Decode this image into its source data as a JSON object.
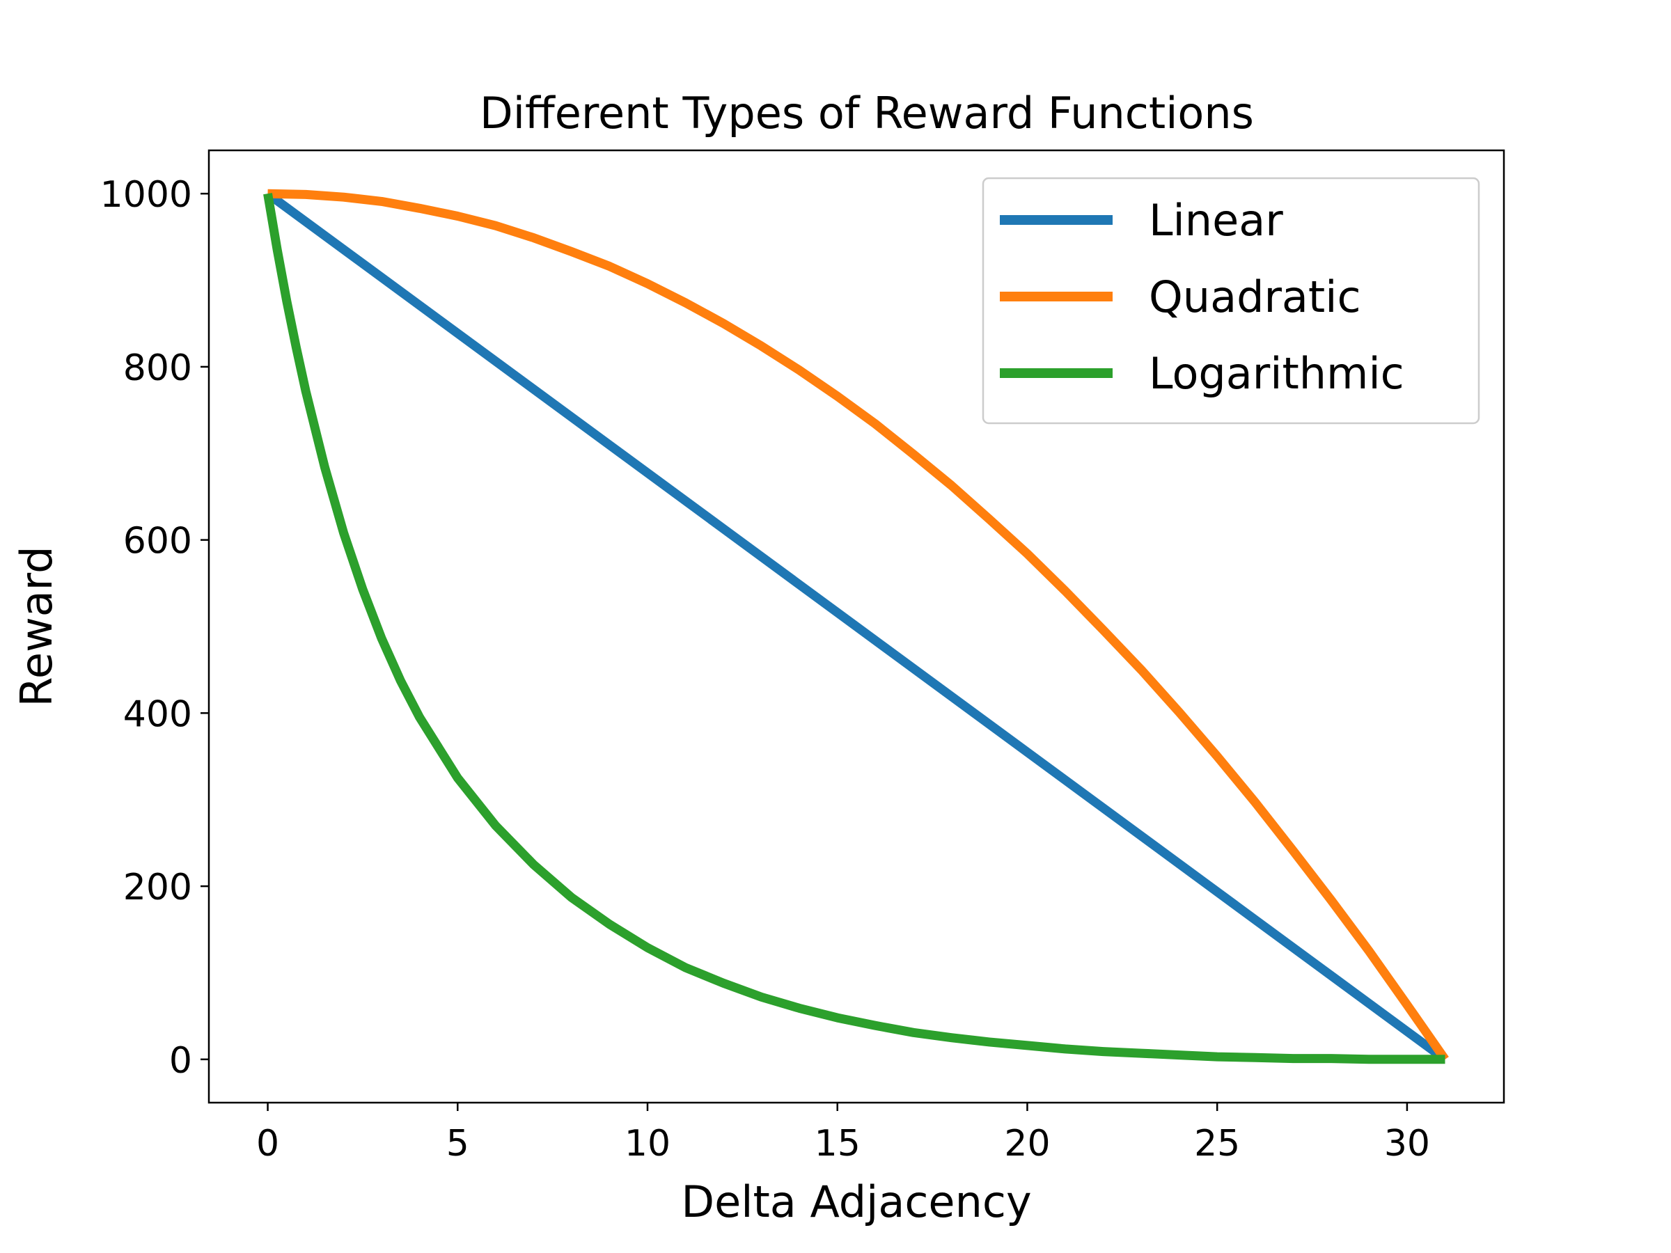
{
  "chart_data": {
    "type": "line",
    "title": "Different Types of Reward Functions",
    "xlabel": "Delta Adjacency",
    "ylabel": "Reward",
    "xlim": [
      -1.55,
      32.55
    ],
    "ylim": [
      -50,
      1050
    ],
    "xticks": [
      0,
      5,
      10,
      15,
      20,
      25,
      30
    ],
    "yticks": [
      0,
      200,
      400,
      600,
      800,
      1000
    ],
    "xtick_labels": [
      "0",
      "5",
      "10",
      "15",
      "20",
      "25",
      "30"
    ],
    "ytick_labels": [
      "0",
      "200",
      "400",
      "600",
      "800",
      "1000"
    ],
    "grid": false,
    "legend_position": "top-right",
    "series": [
      {
        "name": "Linear",
        "color": "#1f77b4",
        "x": [
          0,
          31
        ],
        "y": [
          1000,
          0
        ]
      },
      {
        "name": "Quadratic",
        "color": "#ff7f0e",
        "x": [
          0,
          1,
          2,
          3,
          4,
          5,
          6,
          7,
          8,
          9,
          10,
          11,
          12,
          13,
          14,
          15,
          16,
          17,
          18,
          19,
          20,
          21,
          22,
          23,
          24,
          25,
          26,
          27,
          28,
          29,
          30,
          31
        ],
        "y": [
          1000,
          999,
          996,
          991,
          983,
          974,
          963,
          949,
          933,
          916,
          896,
          874,
          850,
          824,
          796,
          766,
          734,
          699,
          663,
          624,
          584,
          541,
          496,
          450,
          401,
          350,
          297,
          241,
          184,
          125,
          63,
          0
        ]
      },
      {
        "name": "Logarithmic",
        "color": "#2ca02c",
        "x": [
          0,
          0.25,
          0.5,
          0.75,
          1,
          1.5,
          2,
          2.5,
          3,
          3.5,
          4,
          5,
          6,
          7,
          8,
          9,
          10,
          11,
          12,
          13,
          14,
          15,
          16,
          17,
          18,
          19,
          20,
          21,
          22,
          23,
          24,
          25,
          26,
          27,
          28,
          29,
          30,
          31
        ],
        "y": [
          1000,
          935,
          876,
          822,
          772,
          684,
          608,
          543,
          486,
          437,
          395,
          325,
          270,
          225,
          187,
          156,
          129,
          106,
          88,
          72,
          59,
          48,
          39,
          31,
          25,
          20,
          16,
          12,
          9,
          7,
          5,
          3,
          2,
          1,
          1,
          0,
          0,
          0
        ]
      }
    ]
  }
}
